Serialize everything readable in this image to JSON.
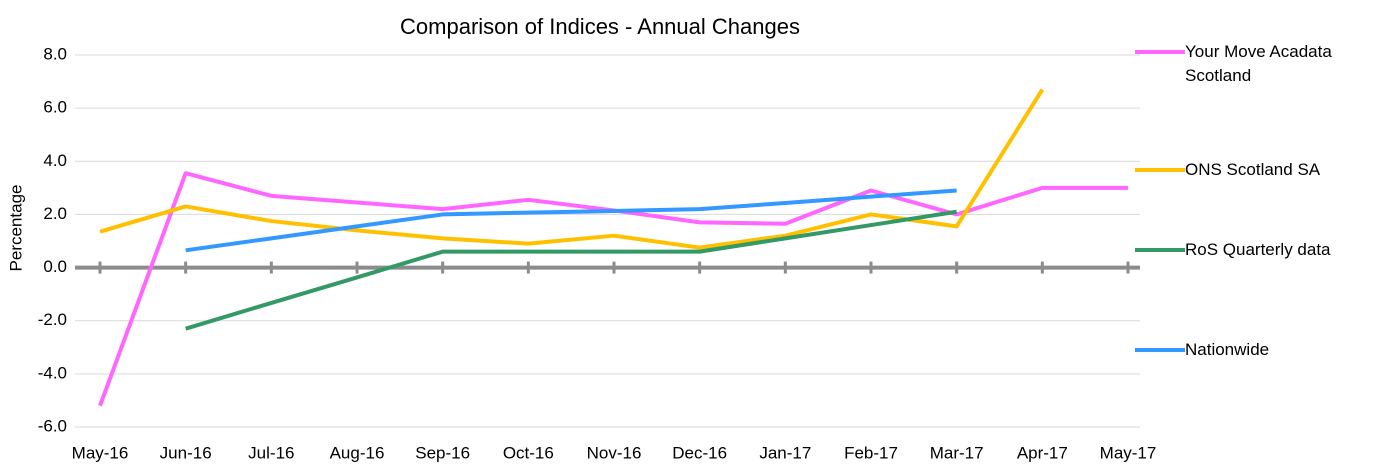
{
  "chart_data": {
    "type": "line",
    "title": "Comparison of Indices - Annual Changes",
    "y_label": "Percentage",
    "categories": [
      "May-16",
      "Jun-16",
      "Jul-16",
      "Aug-16",
      "Sep-16",
      "Oct-16",
      "Nov-16",
      "Dec-16",
      "Jan-17",
      "Feb-17",
      "Mar-17",
      "Apr-17",
      "May-17"
    ],
    "series": [
      {
        "name": "Your Move Acadata Scotland",
        "color": "#ff66ff",
        "values": [
          -5.2,
          3.55,
          2.7,
          2.45,
          2.2,
          2.55,
          2.15,
          1.7,
          1.65,
          2.9,
          2.0,
          3.0,
          3.0
        ]
      },
      {
        "name": "ONS Scotland SA",
        "color": "#ffc000",
        "values": [
          1.35,
          2.3,
          1.75,
          1.4,
          1.1,
          0.9,
          1.2,
          0.75,
          1.2,
          2.0,
          1.55,
          6.7,
          null
        ]
      },
      {
        "name": "RoS Quarterly data",
        "color": "#339966",
        "values": [
          null,
          -2.3,
          -1.33,
          -0.37,
          0.6,
          0.6,
          0.6,
          0.6,
          1.1,
          1.6,
          2.1,
          null,
          null
        ]
      },
      {
        "name": "Nationwide",
        "color": "#3399ff",
        "values": [
          null,
          0.65,
          1.1,
          1.55,
          2.0,
          2.07,
          2.13,
          2.2,
          2.43,
          2.67,
          2.9,
          null,
          null
        ]
      }
    ],
    "ylim": [
      -6,
      8
    ],
    "yticks": [
      {
        "value": -6,
        "label": "-6.0"
      },
      {
        "value": -4,
        "label": "-4.0"
      },
      {
        "value": -2,
        "label": "-2.0"
      },
      {
        "value": 0,
        "label": "0.0"
      },
      {
        "value": 2,
        "label": "2.0"
      },
      {
        "value": 4,
        "label": "4.0"
      },
      {
        "value": 6,
        "label": "6.0"
      },
      {
        "value": 8,
        "label": "8.0"
      }
    ],
    "grid": true
  }
}
